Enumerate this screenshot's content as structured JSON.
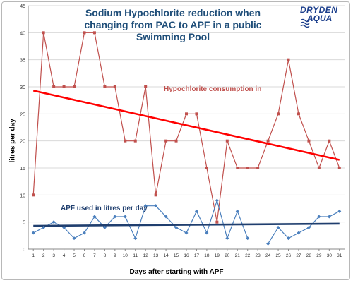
{
  "chart_data": {
    "type": "line",
    "title": "Sodium Hypochlorite reduction when changing from PAC to APF in a public Swimming Pool",
    "xlabel": "Days after starting with APF",
    "ylabel": "litres per day",
    "xlim": [
      1,
      31
    ],
    "ylim": [
      0,
      45
    ],
    "y_ticks": [
      0,
      5,
      10,
      15,
      20,
      25,
      30,
      35,
      40,
      45
    ],
    "categories": [
      1,
      2,
      3,
      4,
      5,
      6,
      7,
      8,
      9,
      10,
      11,
      12,
      13,
      14,
      15,
      16,
      17,
      18,
      19,
      20,
      21,
      22,
      23,
      24,
      25,
      26,
      27,
      28,
      29,
      30,
      31
    ],
    "series": [
      {
        "name": "Hypochlorite consumption in",
        "color": "#c0504d",
        "marker": "square",
        "values": [
          10,
          40,
          30,
          30,
          30,
          40,
          40,
          30,
          30,
          20,
          20,
          30,
          10,
          20,
          20,
          25,
          25,
          15,
          5,
          20,
          15,
          15,
          15,
          20,
          25,
          35,
          25,
          20,
          15,
          20,
          15
        ]
      },
      {
        "name": "APF used in litres per day",
        "color": "#4a7fbd",
        "marker": "diamond",
        "values": [
          3,
          4,
          5,
          4,
          2,
          3,
          6,
          4,
          6,
          6,
          2,
          8,
          8,
          6,
          4,
          3,
          7,
          3,
          9,
          2,
          7,
          2,
          null,
          1,
          4,
          2,
          3,
          4,
          6,
          6,
          7
        ]
      }
    ],
    "trendlines": [
      {
        "series": "Hypochlorite consumption in",
        "color": "#ff0000",
        "start": 29.3,
        "end": 16.5
      },
      {
        "series": "APF used in litres per day",
        "color": "#1f3e6e",
        "start": 4.3,
        "end": 4.7
      }
    ],
    "annotations": [
      {
        "text": "Hypochlorite consumption in",
        "color": "#c0504d"
      },
      {
        "text": "APF used in litres per day",
        "color": "#1f3e6e"
      }
    ],
    "grid": "horizontal",
    "legend": "none"
  },
  "logo": {
    "line1": "DRYDEN",
    "line2": "AQUA"
  }
}
